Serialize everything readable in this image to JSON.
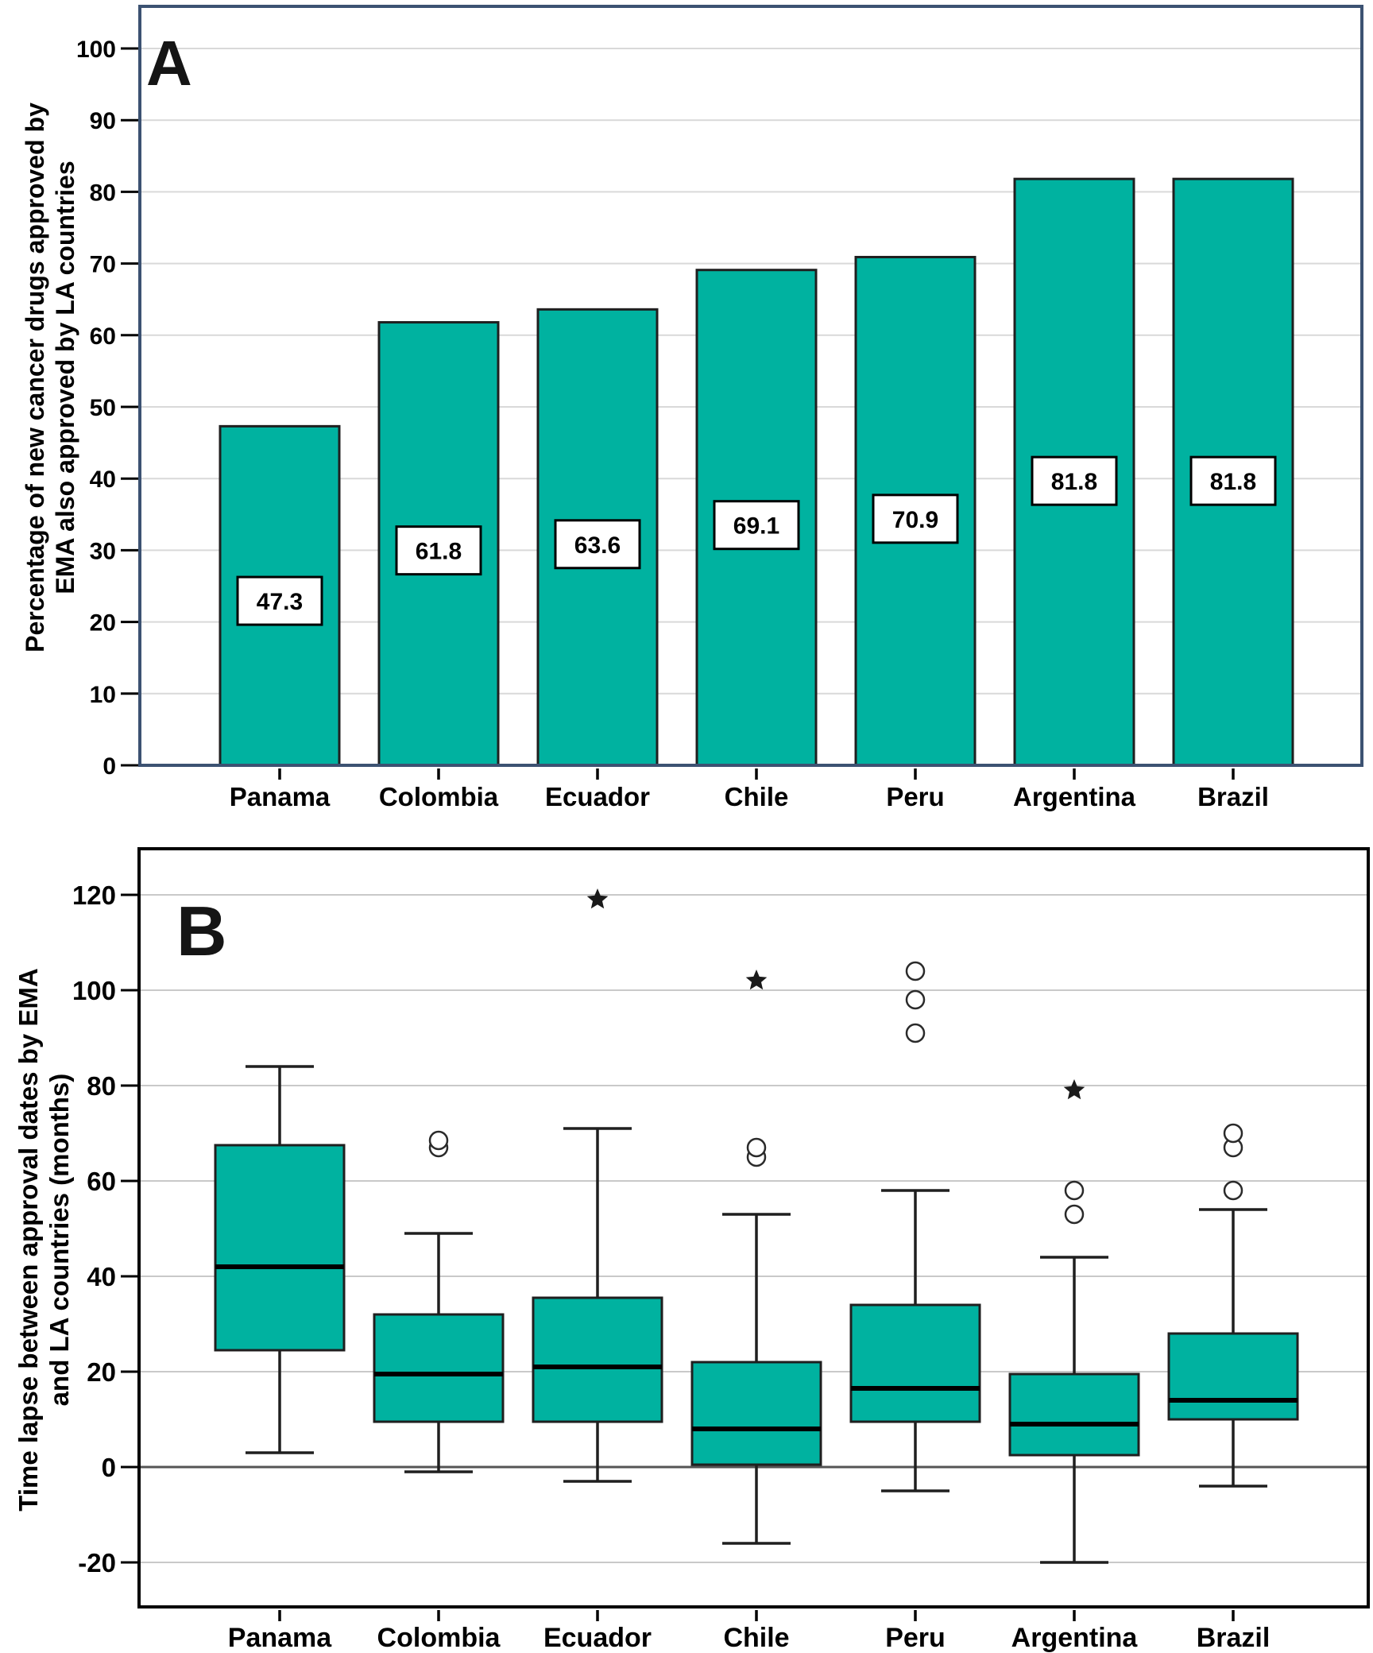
{
  "page": {
    "background": "#ffffff"
  },
  "colors": {
    "teal": "#00b2a0",
    "bar_stroke": "#1f1f1f",
    "panel_a_border": "#3c5272",
    "panel_b_border": "#000000",
    "grid_a": "#d9d9d9",
    "grid_b": "#c9c9c9",
    "zero_line": "#545454",
    "text": "#000000",
    "label_box_bg": "#ffffff"
  },
  "panel_a": {
    "letter": "A",
    "y_title_line1": "Percentage of new cancer drugs approved by",
    "y_title_line2": "EMA also approved by LA countries"
  },
  "panel_b": {
    "letter": "B",
    "y_title_line1": "Time lapse between approval dates by EMA",
    "y_title_line2": "and LA countries (months)"
  },
  "chart_data": [
    {
      "type": "bar",
      "panel": "A",
      "title": "",
      "categories": [
        "Panama",
        "Colombia",
        "Ecuador",
        "Chile",
        "Peru",
        "Argentina",
        "Brazil"
      ],
      "values": [
        47.3,
        61.8,
        63.6,
        69.1,
        70.9,
        81.8,
        81.8
      ],
      "data_labels": [
        "47.3",
        "61.8",
        "63.6",
        "69.1",
        "70.9",
        "81.8",
        "81.8"
      ],
      "xlabel": "",
      "ylabel": "Percentage of new cancer drugs approved by EMA also approved by LA countries",
      "ylim": [
        0,
        100
      ],
      "yticks": [
        0,
        10,
        20,
        30,
        40,
        50,
        60,
        70,
        80,
        90,
        100
      ],
      "ytick_labels": [
        "0",
        "10",
        "20",
        "30",
        "40",
        "50",
        "60",
        "70",
        "80",
        "90",
        "100"
      ],
      "grid": true,
      "legend": null,
      "bar_color": "#00b2a0"
    },
    {
      "type": "boxplot",
      "panel": "B",
      "title": "",
      "categories": [
        "Panama",
        "Colombia",
        "Ecuador",
        "Chile",
        "Peru",
        "Argentina",
        "Brazil"
      ],
      "series": [
        {
          "name": "Panama",
          "whisker_low": 3,
          "q1": 24.5,
          "median": 42,
          "q3": 67.5,
          "whisker_high": 84,
          "outliers_circle": [],
          "outliers_star": []
        },
        {
          "name": "Colombia",
          "whisker_low": -1,
          "q1": 9.5,
          "median": 19.5,
          "q3": 32,
          "whisker_high": 49,
          "outliers_circle": [
            67,
            68.5
          ],
          "outliers_star": []
        },
        {
          "name": "Ecuador",
          "whisker_low": -3,
          "q1": 9.5,
          "median": 21,
          "q3": 35.5,
          "whisker_high": 71,
          "outliers_circle": [],
          "outliers_star": [
            119
          ]
        },
        {
          "name": "Chile",
          "whisker_low": -16,
          "q1": 0.5,
          "median": 8,
          "q3": 22,
          "whisker_high": 53,
          "outliers_circle": [
            65,
            67
          ],
          "outliers_star": [
            102
          ]
        },
        {
          "name": "Peru",
          "whisker_low": -5,
          "q1": 9.5,
          "median": 16.5,
          "q3": 34,
          "whisker_high": 58,
          "outliers_circle": [
            91,
            98,
            104
          ],
          "outliers_star": []
        },
        {
          "name": "Argentina",
          "whisker_low": -20,
          "q1": 2.5,
          "median": 9,
          "q3": 19.5,
          "whisker_high": 44,
          "outliers_circle": [
            53,
            58
          ],
          "outliers_star": [
            79
          ]
        },
        {
          "name": "Brazil",
          "whisker_low": -4,
          "q1": 10,
          "median": 14,
          "q3": 28,
          "whisker_high": 54,
          "outliers_circle": [
            58,
            67,
            70
          ],
          "outliers_star": []
        }
      ],
      "xlabel": "",
      "ylabel": "Time lapse between approval dates by EMA and LA countries (months)",
      "ylim": [
        -20,
        120
      ],
      "yticks": [
        -20,
        0,
        20,
        40,
        60,
        80,
        100,
        120
      ],
      "ytick_labels": [
        "-20",
        "0",
        "20",
        "40",
        "60",
        "80",
        "100",
        "120"
      ],
      "grid": true,
      "zero_line": true,
      "legend": null,
      "box_color": "#00b2a0"
    }
  ]
}
